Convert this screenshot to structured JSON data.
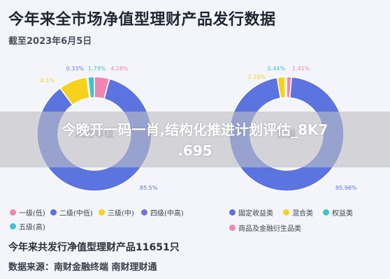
{
  "title": "今年来全市场净值型理财产品发行数据",
  "subtitle": "截至2023年6月5日",
  "colors": {
    "blue": "#5b74e0",
    "yellow": "#f7d21c",
    "pink": "#ef86b1",
    "teal": "#3fc2d1",
    "gray": "#a9a9a9",
    "purple": "#7b6fd6"
  },
  "chart_data": [
    {
      "type": "pie",
      "center_label": "风险等级",
      "series": [
        {
          "name": "一级(低)",
          "value": 4.28,
          "label": "4.28%",
          "color": "#ef86b1"
        },
        {
          "name": "二级(中低)",
          "value": 85.5,
          "label": "85.5%",
          "color": "#5b74e0"
        },
        {
          "name": "三级(中)",
          "value": 8.1,
          "label": "8.1%",
          "color": "#f7d21c"
        },
        {
          "name": "四级(中高)",
          "value": 0.33,
          "label": "0.33%",
          "color": "#7b6fd6"
        },
        {
          "name": "五级(高)",
          "value": 1.79,
          "label": "1.79%",
          "color": "#3fc2d1"
        }
      ],
      "legend": [
        "一级(低)",
        "二级(中低)",
        "三级(中)",
        "四级(中高)",
        "五级(高)"
      ]
    },
    {
      "type": "pie",
      "center_label": "数量",
      "series": [
        {
          "name": "商品及金融衍生品类",
          "value": 1.41,
          "label": "1.41%",
          "color": "#ef86b1"
        },
        {
          "name": "固定收益类",
          "value": 95.96,
          "label": "95.96%",
          "color": "#5b74e0"
        },
        {
          "name": "混合类",
          "value": 2.19,
          "label": "2.19%",
          "color": "#f7d21c"
        },
        {
          "name": "权益类",
          "value": 0.44,
          "label": "0.44%",
          "color": "#3fc2d1"
        }
      ],
      "legend": [
        "固定收益类",
        "混合类",
        "权益类",
        "商品及金融衍生品类"
      ]
    }
  ],
  "footer": {
    "total": "今年来共发行净值型理财产品11651只",
    "source": "数据来源：南财金融终端 南财理财通"
  },
  "overlay": {
    "line1": "今晚开一码一肖,结构化推进计划评估_8K7",
    "line2": ".695"
  }
}
